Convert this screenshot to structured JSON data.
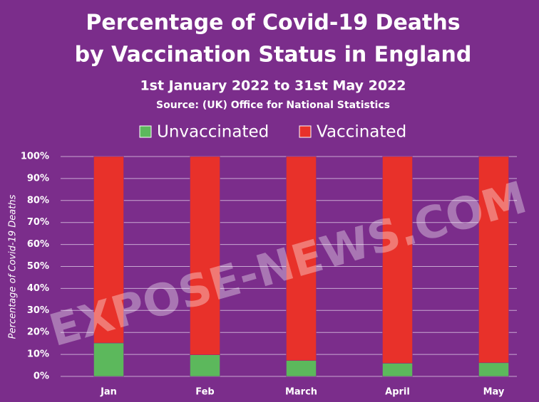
{
  "chart_data": {
    "type": "stacked_bar",
    "title": [
      "Percentage of Covid-19 Deaths",
      "by Vaccination Status in England"
    ],
    "subtitle": "1st January 2022 to 31st May 2022",
    "source": "Source:  (UK) Office for National Statistics",
    "y_label": "Percentage of Covid-19 Deaths",
    "watermark": "EXPOSE-NEWS.COM",
    "categories": [
      "Jan",
      "Feb",
      "March",
      "April",
      "May"
    ],
    "series": [
      {
        "name": "Unvaccinated",
        "color": "#5cb85c",
        "values": [
          15.2,
          9.8,
          7.2,
          6.0,
          6.2
        ]
      },
      {
        "name": "Vaccinated",
        "color": "#e8312a",
        "values": [
          84.8,
          90.2,
          92.8,
          94.0,
          93.8
        ]
      }
    ],
    "ylim": [
      0,
      100
    ],
    "yticks": [
      {
        "value": 0,
        "label": "0%"
      },
      {
        "value": 10,
        "label": "10%"
      },
      {
        "value": 20,
        "label": "20%"
      },
      {
        "value": 30,
        "label": "30%"
      },
      {
        "value": 40,
        "label": "40%"
      },
      {
        "value": 50,
        "label": "50%"
      },
      {
        "value": 60,
        "label": "60%"
      },
      {
        "value": 70,
        "label": "70%"
      },
      {
        "value": 80,
        "label": "80%"
      },
      {
        "value": 90,
        "label": "90%"
      },
      {
        "value": 100,
        "label": "100%"
      }
    ],
    "grid": true
  }
}
